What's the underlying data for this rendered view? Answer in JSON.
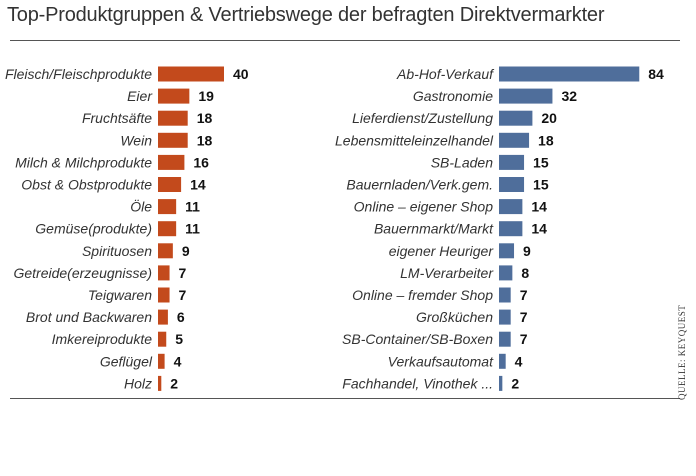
{
  "title": "Top-Produktgruppen & Vertriebswege der befragten Direktvermarkter",
  "source": "QUELLE: KEYQUEST",
  "colors": {
    "left_bar": "#c34a1c",
    "right_bar": "#4f6e9b",
    "text": "#333333"
  },
  "chart_data": [
    {
      "type": "bar",
      "orientation": "horizontal",
      "categories": [
        "Fleisch/Fleischprodukte",
        "Eier",
        "Fruchtsäfte",
        "Wein",
        "Milch & Milchprodukte",
        "Obst & Obstprodukte",
        "Öle",
        "Gemüse(produkte)",
        "Spirituosen",
        "Getreide(erzeugnisse)",
        "Teigwaren",
        "Brot und Backwaren",
        "Imkereiprodukte",
        "Geflügel",
        "Holz"
      ],
      "values": [
        40,
        19,
        18,
        18,
        16,
        14,
        11,
        11,
        9,
        7,
        7,
        6,
        5,
        4,
        2
      ],
      "data_labels": true
    },
    {
      "type": "bar",
      "orientation": "horizontal",
      "categories": [
        "Ab-Hof-Verkauf",
        "Gastronomie",
        "Lieferdienst/Zustellung",
        "Lebensmitteleinzelhandel",
        "SB-Laden",
        "Bauernladen/Verk.gem.",
        "Online – eigener Shop",
        "Bauernmarkt/Markt",
        "eigener Heuriger",
        "LM-Verarbeiter",
        "Online – fremder Shop",
        "Großküchen",
        "SB-Container/SB-Boxen",
        "Verkaufsautomat",
        "Fachhandel, Vinothek ..."
      ],
      "values": [
        84,
        32,
        20,
        18,
        15,
        15,
        14,
        14,
        9,
        8,
        7,
        7,
        7,
        4,
        2
      ],
      "data_labels": true
    }
  ]
}
